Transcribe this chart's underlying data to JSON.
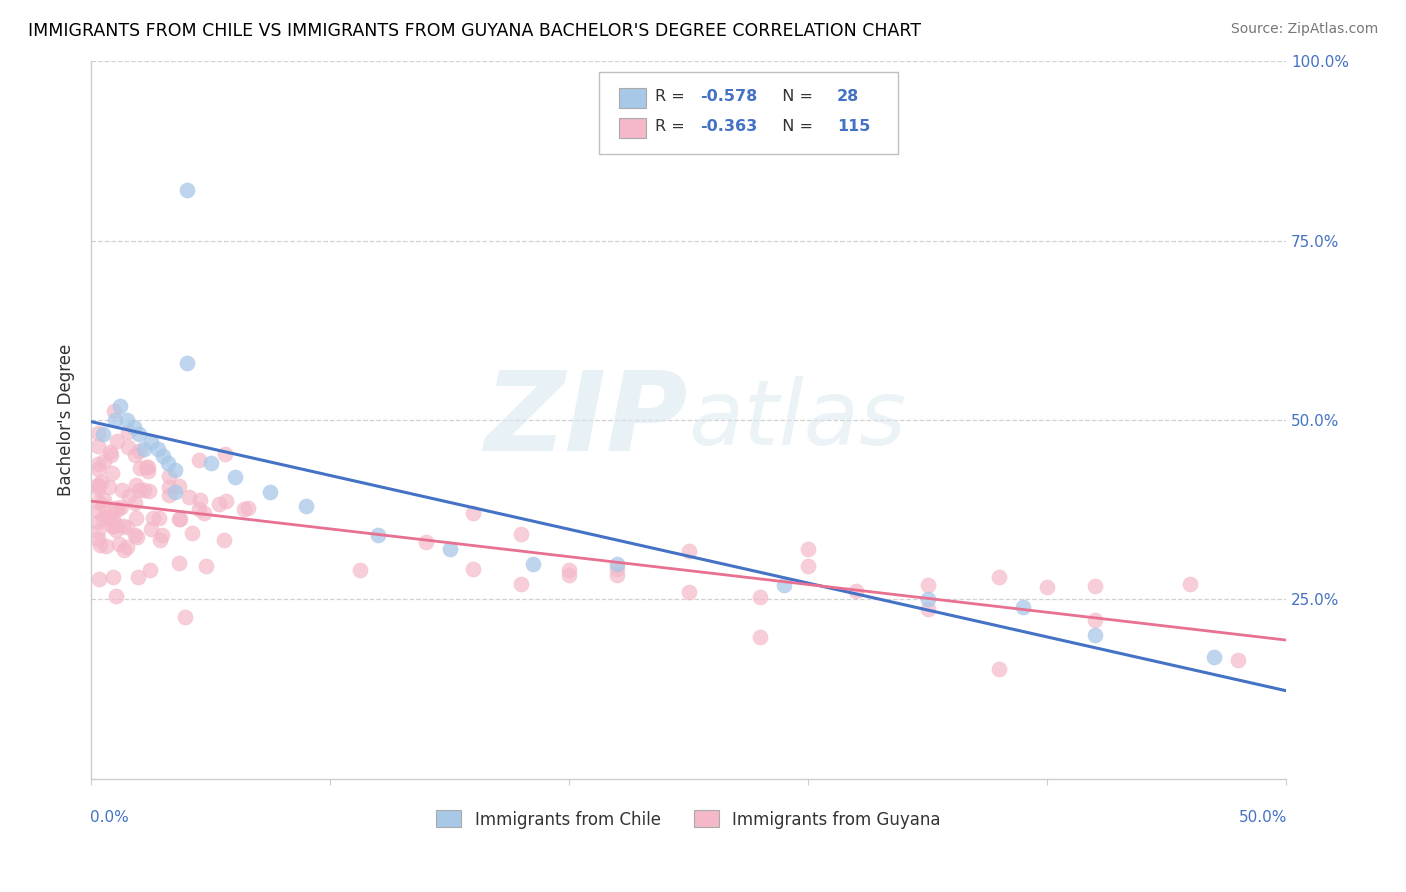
{
  "title": "IMMIGRANTS FROM CHILE VS IMMIGRANTS FROM GUYANA BACHELOR'S DEGREE CORRELATION CHART",
  "source": "Source: ZipAtlas.com",
  "ylabel": "Bachelor's Degree",
  "ylabel_right_labels": [
    "100.0%",
    "75.0%",
    "50.0%",
    "25.0%",
    ""
  ],
  "ylabel_right_values": [
    1.0,
    0.75,
    0.5,
    0.25,
    0.0
  ],
  "xlim": [
    0.0,
    0.5
  ],
  "ylim": [
    0.0,
    1.0
  ],
  "chile_R": -0.578,
  "chile_N": 28,
  "guyana_R": -0.363,
  "guyana_N": 115,
  "chile_color": "#a8c8e8",
  "guyana_color": "#f4b8c8",
  "chile_line_color": "#4472c4",
  "guyana_line_color": "#e87090",
  "background_color": "#ffffff",
  "grid_color": "#cccccc",
  "legend_text_color": "#4472c4",
  "legend_label_color": "#333333"
}
